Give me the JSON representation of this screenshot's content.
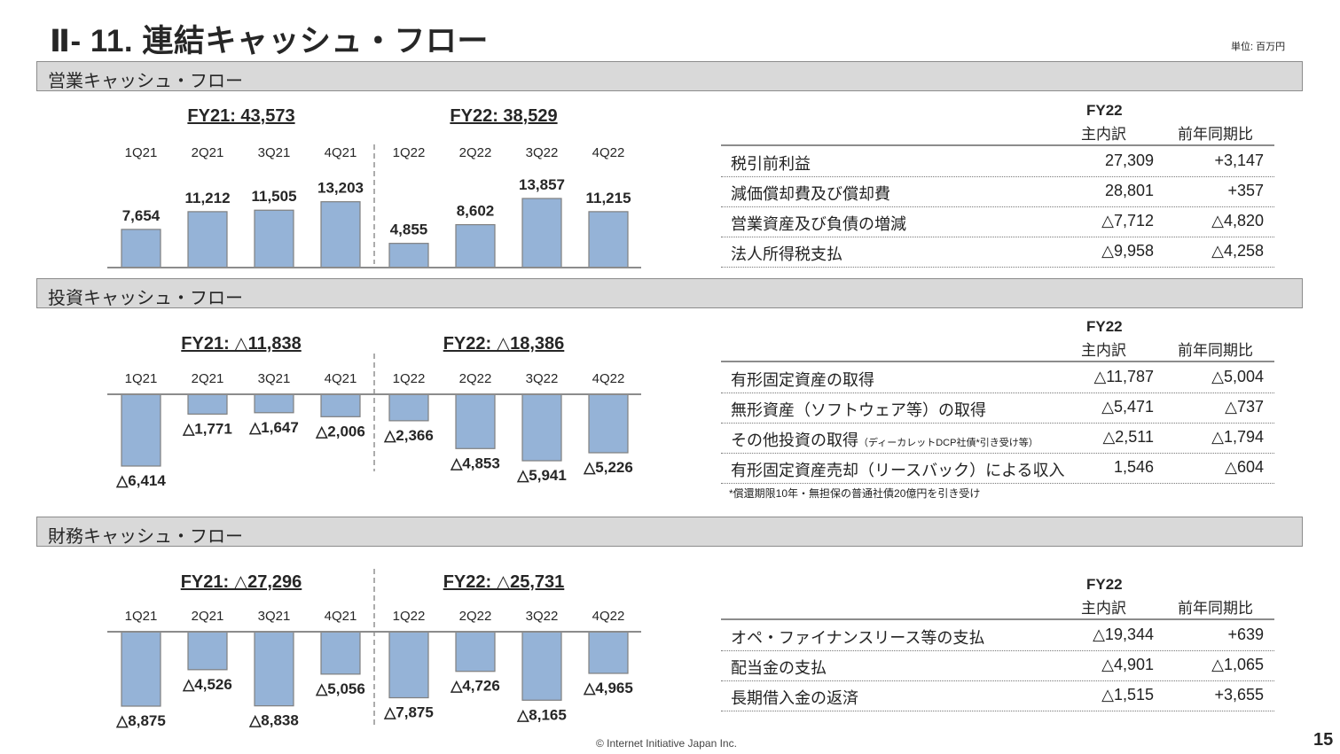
{
  "header": {
    "title": "Ⅱ- 11.  連結キャッシュ・フロー",
    "unit": "単位: 百万円"
  },
  "sections": {
    "operating": {
      "title": "営業キャッシュ・フロー"
    },
    "investing": {
      "title": "投資キャッシュ・フロー"
    },
    "financing": {
      "title": "財務キャッシュ・フロー"
    }
  },
  "table_header": {
    "fy": "FY22",
    "main": "主内訳",
    "yoy": "前年同期比"
  },
  "operating_table": [
    {
      "label": "税引前利益",
      "value": "27,309",
      "yoy": "+3,147"
    },
    {
      "label": "減価償却費及び償却費",
      "value": "28,801",
      "yoy": "+357"
    },
    {
      "label": "営業資産及び負債の増減",
      "value": "△7,712",
      "yoy": "△4,820"
    },
    {
      "label": "法人所得税支払",
      "value": "△9,958",
      "yoy": "△4,258"
    }
  ],
  "investing_table": [
    {
      "label": "有形固定資産の取得",
      "note": "",
      "value": "△11,787",
      "yoy": "△5,004"
    },
    {
      "label": "無形資産（ソフトウェア等）の取得",
      "note": "",
      "value": "△5,471",
      "yoy": "△737"
    },
    {
      "label": "その他投資の取得",
      "note": "（ディーカレットDCP社債*引き受け等）",
      "value": "△2,511",
      "yoy": "△1,794"
    },
    {
      "label": "有形固定資産売却（リースバック）による収入",
      "note": "",
      "value": "1,546",
      "yoy": "△604"
    }
  ],
  "investing_footnote": "*償還期限10年・無担保の普通社債20億円を引き受け",
  "financing_table": [
    {
      "label": "オペ・ファイナンスリース等の支払",
      "value": "△19,344",
      "yoy": "+639"
    },
    {
      "label": "配当金の支払",
      "value": "△4,901",
      "yoy": "△1,065"
    },
    {
      "label": "長期借入金の返済",
      "value": "△1,515",
      "yoy": "+3,655"
    }
  ],
  "footer": {
    "copyright": "© Internet Initiative Japan Inc.",
    "page": "15"
  },
  "colors": {
    "bar": "#95b3d7",
    "bar_stroke": "#7f7f7f",
    "axis": "#8c8c8c",
    "section_bg": "#d9d9d9"
  },
  "chart_data": [
    {
      "type": "bar",
      "title": "営業キャッシュ・フロー",
      "categories": [
        "1Q21",
        "2Q21",
        "3Q21",
        "4Q21",
        "1Q22",
        "2Q22",
        "3Q22",
        "4Q22"
      ],
      "values": [
        7654,
        11212,
        11505,
        13203,
        4855,
        8602,
        13857,
        11215
      ],
      "value_labels": [
        "7,654",
        "11,212",
        "11,505",
        "13,203",
        "4,855",
        "8,602",
        "13,857",
        "11,215"
      ],
      "group_totals": [
        "FY21: 43,573",
        "FY22: 38,529"
      ],
      "ylim": [
        0,
        14000
      ]
    },
    {
      "type": "bar",
      "title": "投資キャッシュ・フロー",
      "categories": [
        "1Q21",
        "2Q21",
        "3Q21",
        "4Q21",
        "1Q22",
        "2Q22",
        "3Q22",
        "4Q22"
      ],
      "values": [
        -6414,
        -1771,
        -1647,
        -2006,
        -2366,
        -4853,
        -5941,
        -5226
      ],
      "value_labels": [
        "△6,414",
        "△1,771",
        "△1,647",
        "△2,006",
        "△2,366",
        "△4,853",
        "△5,941",
        "△5,226"
      ],
      "group_totals": [
        "FY21: △11,838",
        "FY22: △18,386"
      ],
      "ylim": [
        -6500,
        0
      ]
    },
    {
      "type": "bar",
      "title": "財務キャッシュ・フロー",
      "categories": [
        "1Q21",
        "2Q21",
        "3Q21",
        "4Q21",
        "1Q22",
        "2Q22",
        "3Q22",
        "4Q22"
      ],
      "values": [
        -8875,
        -4526,
        -8838,
        -5056,
        -7875,
        -4726,
        -8165,
        -4965
      ],
      "value_labels": [
        "△8,875",
        "△4,526",
        "△8,838",
        "△5,056",
        "△7,875",
        "△4,726",
        "△8,165",
        "△4,965"
      ],
      "group_totals": [
        "FY21: △27,296",
        "FY22: △25,731"
      ],
      "ylim": [
        -9000,
        0
      ]
    }
  ]
}
